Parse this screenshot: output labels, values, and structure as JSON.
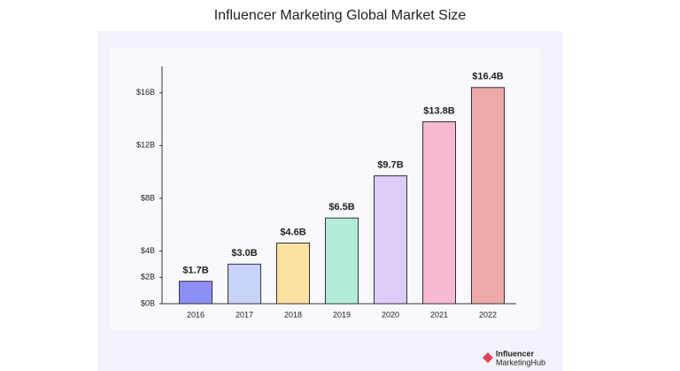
{
  "chart_data": {
    "type": "bar",
    "title": "Influencer Marketing Global Market Size",
    "categories": [
      "2016",
      "2017",
      "2018",
      "2019",
      "2020",
      "2021",
      "2022"
    ],
    "values": [
      1.7,
      3.0,
      4.6,
      6.5,
      9.7,
      13.8,
      16.4
    ],
    "value_labels": [
      "$1.7B",
      "$3.0B",
      "$4.6B",
      "$6.5B",
      "$9.7B",
      "$13.8B",
      "$16.4B"
    ],
    "colors": [
      "#8d8ef6",
      "#c9d2f9",
      "#fde1a2",
      "#b2ecd9",
      "#dccdf9",
      "#f9b9d5",
      "#eea9a9"
    ],
    "ylim": [
      0,
      18
    ],
    "yticks": [
      {
        "value": 0,
        "label": "$0B"
      },
      {
        "value": 2,
        "label": "$2B"
      },
      {
        "value": 4,
        "label": "$4B"
      },
      {
        "value": 8,
        "label": "$8B"
      },
      {
        "value": 12,
        "label": "$12B"
      },
      {
        "value": 16,
        "label": "$16B"
      }
    ],
    "grid": false
  },
  "logo": {
    "line1": "Influencer",
    "line2": "MarketingHub"
  }
}
